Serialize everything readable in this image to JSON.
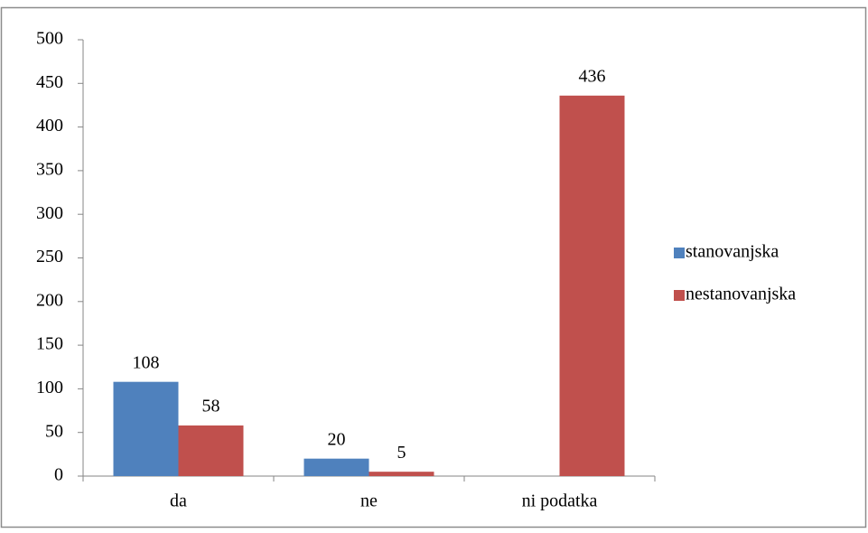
{
  "chart_data": {
    "type": "bar",
    "categories": [
      "da",
      "ne",
      "ni podatka"
    ],
    "series": [
      {
        "name": "stanovanjska",
        "color": "#4f81bd",
        "values": [
          108,
          20,
          null
        ]
      },
      {
        "name": "nestanovanjska",
        "color": "#c0504d",
        "values": [
          58,
          5,
          436
        ]
      }
    ],
    "ylim": [
      0,
      500
    ],
    "yticks": [
      0,
      50,
      100,
      150,
      200,
      250,
      300,
      350,
      400,
      450,
      500
    ],
    "legend": "right"
  }
}
